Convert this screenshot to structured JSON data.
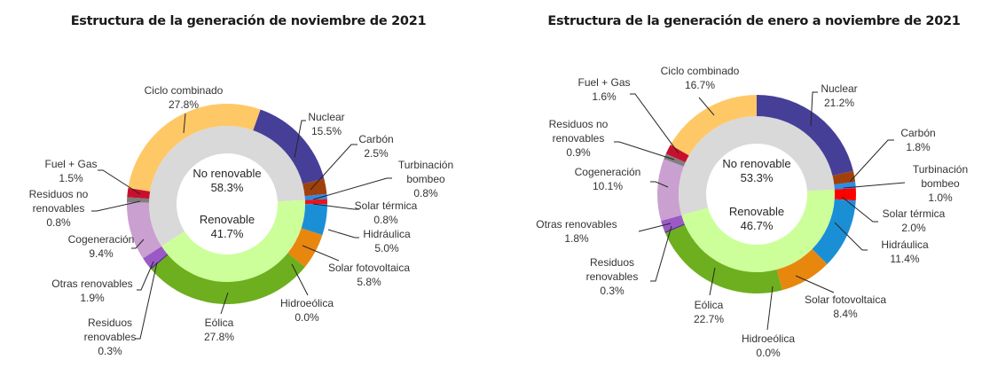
{
  "chart_data": [
    {
      "type": "pie",
      "subtype": "double-donut",
      "title": "Estructura de la generación de noviembre de 2021",
      "inner_ring": [
        {
          "name": "No renovable",
          "value": 58.3,
          "label": "58.3%",
          "color": "#D9D9D9"
        },
        {
          "name": "Renovable",
          "value": 41.7,
          "label": "41.7%",
          "color": "#CCFF99"
        }
      ],
      "outer_ring": [
        {
          "name": "Nuclear",
          "value": 15.5,
          "label": "15.5%",
          "color": "#463F98",
          "group": "No renovable"
        },
        {
          "name": "Carbón",
          "value": 2.5,
          "label": "2.5%",
          "color": "#A0410D",
          "group": "No renovable"
        },
        {
          "name": "Turbinación bombeo",
          "lines": [
            "Turbinación",
            "bombeo"
          ],
          "value": 0.8,
          "label": "0.8%",
          "color": "#2E8BE8",
          "group": "No renovable"
        },
        {
          "name": "Solar térmica",
          "value": 0.8,
          "label": "0.8%",
          "color": "#E8141E",
          "group": "Renovable"
        },
        {
          "name": "Hidráulica",
          "value": 5.0,
          "label": "5.0%",
          "color": "#1B8FD6",
          "group": "Renovable"
        },
        {
          "name": "Solar fotovoltaica",
          "value": 5.8,
          "label": "5.8%",
          "color": "#E8870E",
          "group": "Renovable"
        },
        {
          "name": "Hidroeólica",
          "value": 0.0,
          "label": "0.0%",
          "color": "#4FA3D9",
          "group": "Renovable"
        },
        {
          "name": "Eólica",
          "value": 27.8,
          "label": "27.8%",
          "color": "#6DAF1E",
          "group": "Renovable"
        },
        {
          "name": "Residuos renovables",
          "lines": [
            "Residuos",
            "renovables"
          ],
          "value": 0.3,
          "label": "0.3%",
          "color": "#5B3A8C",
          "group": "Renovable"
        },
        {
          "name": "Otras renovables",
          "value": 1.9,
          "label": "1.9%",
          "color": "#9B59C6",
          "group": "Renovable"
        },
        {
          "name": "Cogeneración",
          "value": 9.4,
          "label": "9.4%",
          "color": "#C9A0CF",
          "group": "No renovable"
        },
        {
          "name": "Residuos no renovables",
          "lines": [
            "Residuos no",
            "renovables"
          ],
          "value": 0.8,
          "label": "0.8%",
          "color": "#7F7F7F",
          "group": "No renovable"
        },
        {
          "name": "Fuel + Gas",
          "value": 1.5,
          "label": "1.5%",
          "color": "#C8102E",
          "group": "No renovable"
        },
        {
          "name": "Ciclo combinado",
          "value": 27.8,
          "label": "27.8%",
          "color": "#FFC866",
          "group": "No renovable"
        }
      ]
    },
    {
      "type": "pie",
      "subtype": "double-donut",
      "title": "Estructura de la generación de enero a noviembre de 2021",
      "inner_ring": [
        {
          "name": "No renovable",
          "value": 53.3,
          "label": "53.3%",
          "color": "#D9D9D9"
        },
        {
          "name": "Renovable",
          "value": 46.7,
          "label": "46.7%",
          "color": "#CCFF99"
        }
      ],
      "outer_ring": [
        {
          "name": "Nuclear",
          "value": 21.2,
          "label": "21.2%",
          "color": "#463F98",
          "group": "No renovable"
        },
        {
          "name": "Carbón",
          "value": 1.8,
          "label": "1.8%",
          "color": "#A0410D",
          "group": "No renovable"
        },
        {
          "name": "Turbinación bombeo",
          "lines": [
            "Turbinación",
            "bombeo"
          ],
          "value": 1.0,
          "label": "1.0%",
          "color": "#2E8BE8",
          "group": "No renovable"
        },
        {
          "name": "Solar térmica",
          "value": 2.0,
          "label": "2.0%",
          "color": "#FF0000",
          "group": "Renovable"
        },
        {
          "name": "Hidráulica",
          "value": 11.4,
          "label": "11.4%",
          "color": "#1B8FD6",
          "group": "Renovable"
        },
        {
          "name": "Solar fotovoltaica",
          "value": 8.4,
          "label": "8.4%",
          "color": "#E8870E",
          "group": "Renovable"
        },
        {
          "name": "Hidroeólica",
          "value": 0.0,
          "label": "0.0%",
          "color": "#4FA3D9",
          "group": "Renovable"
        },
        {
          "name": "Eólica",
          "value": 22.7,
          "label": "22.7%",
          "color": "#6DAF1E",
          "group": "Renovable"
        },
        {
          "name": "Residuos renovables",
          "lines": [
            "Residuos",
            "renovables"
          ],
          "value": 0.3,
          "label": "0.3%",
          "color": "#5B3A8C",
          "group": "Renovable"
        },
        {
          "name": "Otras renovables",
          "value": 1.8,
          "label": "1.8%",
          "color": "#9B59C6",
          "group": "Renovable"
        },
        {
          "name": "Cogeneración",
          "value": 10.1,
          "label": "10.1%",
          "color": "#C9A0CF",
          "group": "No renovable"
        },
        {
          "name": "Residuos no renovables",
          "lines": [
            "Residuos no",
            "renovables"
          ],
          "value": 0.9,
          "label": "0.9%",
          "color": "#7F7F7F",
          "group": "No renovable"
        },
        {
          "name": "Fuel + Gas",
          "value": 1.6,
          "label": "1.6%",
          "color": "#C8102E",
          "group": "No renovable"
        },
        {
          "name": "Ciclo combinado",
          "value": 16.7,
          "label": "16.7%",
          "color": "#FFC866",
          "group": "No renovable"
        }
      ]
    }
  ]
}
